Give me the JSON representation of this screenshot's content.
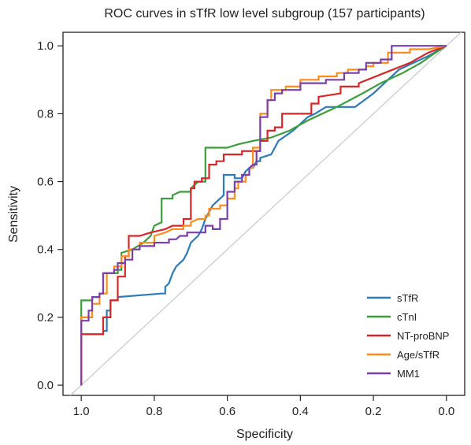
{
  "chart_data": {
    "type": "line",
    "title": "ROC curves in sTfR low level subgroup (157 participants)",
    "xlabel": "Specificity",
    "ylabel": "Sensitivity",
    "xlim": [
      1.05,
      -0.05
    ],
    "ylim": [
      -0.03,
      1.04
    ],
    "x_reversed": true,
    "xticks": [
      1.0,
      0.8,
      0.6,
      0.4,
      0.2,
      0.0
    ],
    "xtick_labels": [
      "1.0",
      "0.8",
      "0.6",
      "0.4",
      "0.2",
      "0.0"
    ],
    "yticks": [
      0.0,
      0.2,
      0.4,
      0.6,
      0.8,
      1.0
    ],
    "ytick_labels": [
      "0.0",
      "0.2",
      "0.4",
      "0.6",
      "0.8",
      "1.0"
    ],
    "grid": false,
    "legend": "bottom-right",
    "reference_line": {
      "from": [
        1.0,
        0.0
      ],
      "to": [
        0.0,
        1.0
      ],
      "color": "#c8c8d2"
    },
    "series": [
      {
        "name": "sTfR",
        "color": "#2b7bba",
        "points": [
          [
            1.0,
            0.0
          ],
          [
            1.0,
            0.15
          ],
          [
            0.94,
            0.15
          ],
          [
            0.94,
            0.16
          ],
          [
            0.93,
            0.16
          ],
          [
            0.93,
            0.22
          ],
          [
            0.92,
            0.22
          ],
          [
            0.92,
            0.25
          ],
          [
            0.9,
            0.25
          ],
          [
            0.9,
            0.26
          ],
          [
            0.78,
            0.27
          ],
          [
            0.77,
            0.27
          ],
          [
            0.77,
            0.29
          ],
          [
            0.76,
            0.3
          ],
          [
            0.75,
            0.33
          ],
          [
            0.74,
            0.35
          ],
          [
            0.72,
            0.37
          ],
          [
            0.71,
            0.39
          ],
          [
            0.7,
            0.42
          ],
          [
            0.68,
            0.44
          ],
          [
            0.67,
            0.46
          ],
          [
            0.66,
            0.49
          ],
          [
            0.64,
            0.53
          ],
          [
            0.62,
            0.55
          ],
          [
            0.61,
            0.56
          ],
          [
            0.61,
            0.62
          ],
          [
            0.58,
            0.62
          ],
          [
            0.58,
            0.61
          ],
          [
            0.56,
            0.61
          ],
          [
            0.55,
            0.63
          ],
          [
            0.54,
            0.64
          ],
          [
            0.53,
            0.64
          ],
          [
            0.52,
            0.66
          ],
          [
            0.51,
            0.66
          ],
          [
            0.51,
            0.67
          ],
          [
            0.48,
            0.68
          ],
          [
            0.47,
            0.7
          ],
          [
            0.46,
            0.72
          ],
          [
            0.42,
            0.75
          ],
          [
            0.38,
            0.79
          ],
          [
            0.36,
            0.8
          ],
          [
            0.33,
            0.82
          ],
          [
            0.25,
            0.82
          ],
          [
            0.2,
            0.86
          ],
          [
            0.16,
            0.9
          ],
          [
            0.13,
            0.93
          ],
          [
            0.09,
            0.95
          ],
          [
            0.05,
            0.97
          ],
          [
            0.0,
            1.0
          ]
        ]
      },
      {
        "name": "cTnI",
        "color": "#3a9e3a",
        "points": [
          [
            1.0,
            0.0
          ],
          [
            1.0,
            0.25
          ],
          [
            0.97,
            0.25
          ],
          [
            0.97,
            0.26
          ],
          [
            0.95,
            0.26
          ],
          [
            0.95,
            0.27
          ],
          [
            0.94,
            0.27
          ],
          [
            0.94,
            0.33
          ],
          [
            0.9,
            0.33
          ],
          [
            0.9,
            0.34
          ],
          [
            0.89,
            0.34
          ],
          [
            0.89,
            0.39
          ],
          [
            0.86,
            0.4
          ],
          [
            0.83,
            0.42
          ],
          [
            0.81,
            0.44
          ],
          [
            0.8,
            0.47
          ],
          [
            0.78,
            0.48
          ],
          [
            0.78,
            0.55
          ],
          [
            0.75,
            0.55
          ],
          [
            0.75,
            0.56
          ],
          [
            0.73,
            0.57
          ],
          [
            0.7,
            0.57
          ],
          [
            0.7,
            0.58
          ],
          [
            0.69,
            0.59
          ],
          [
            0.68,
            0.6
          ],
          [
            0.66,
            0.6
          ],
          [
            0.66,
            0.7
          ],
          [
            0.62,
            0.7
          ],
          [
            0.6,
            0.7
          ],
          [
            0.57,
            0.71
          ],
          [
            0.53,
            0.72
          ],
          [
            0.48,
            0.73
          ],
          [
            0.43,
            0.75
          ],
          [
            0.38,
            0.78
          ],
          [
            0.3,
            0.82
          ],
          [
            0.23,
            0.86
          ],
          [
            0.18,
            0.89
          ],
          [
            0.12,
            0.92
          ],
          [
            0.07,
            0.95
          ],
          [
            0.03,
            0.98
          ],
          [
            0.0,
            1.0
          ]
        ]
      },
      {
        "name": "NT-proBNP",
        "color": "#d62728",
        "points": [
          [
            1.0,
            0.0
          ],
          [
            1.0,
            0.15
          ],
          [
            0.94,
            0.15
          ],
          [
            0.94,
            0.2
          ],
          [
            0.92,
            0.2
          ],
          [
            0.92,
            0.25
          ],
          [
            0.9,
            0.25
          ],
          [
            0.9,
            0.32
          ],
          [
            0.88,
            0.32
          ],
          [
            0.88,
            0.38
          ],
          [
            0.87,
            0.38
          ],
          [
            0.87,
            0.44
          ],
          [
            0.84,
            0.44
          ],
          [
            0.81,
            0.45
          ],
          [
            0.77,
            0.46
          ],
          [
            0.75,
            0.47
          ],
          [
            0.72,
            0.47
          ],
          [
            0.72,
            0.49
          ],
          [
            0.7,
            0.49
          ],
          [
            0.7,
            0.58
          ],
          [
            0.69,
            0.58
          ],
          [
            0.69,
            0.6
          ],
          [
            0.67,
            0.6
          ],
          [
            0.67,
            0.61
          ],
          [
            0.65,
            0.61
          ],
          [
            0.65,
            0.65
          ],
          [
            0.63,
            0.65
          ],
          [
            0.63,
            0.66
          ],
          [
            0.62,
            0.66
          ],
          [
            0.61,
            0.66
          ],
          [
            0.61,
            0.68
          ],
          [
            0.56,
            0.68
          ],
          [
            0.56,
            0.69
          ],
          [
            0.51,
            0.69
          ],
          [
            0.51,
            0.72
          ],
          [
            0.49,
            0.72
          ],
          [
            0.49,
            0.75
          ],
          [
            0.47,
            0.75
          ],
          [
            0.47,
            0.76
          ],
          [
            0.45,
            0.76
          ],
          [
            0.45,
            0.8
          ],
          [
            0.37,
            0.8
          ],
          [
            0.37,
            0.83
          ],
          [
            0.35,
            0.83
          ],
          [
            0.35,
            0.85
          ],
          [
            0.29,
            0.86
          ],
          [
            0.29,
            0.88
          ],
          [
            0.24,
            0.88
          ],
          [
            0.24,
            0.89
          ],
          [
            0.17,
            0.92
          ],
          [
            0.1,
            0.95
          ],
          [
            0.05,
            0.98
          ],
          [
            0.0,
            1.0
          ]
        ]
      },
      {
        "name": "Age/sTfR",
        "color": "#ff8c1a",
        "points": [
          [
            1.0,
            0.0
          ],
          [
            1.0,
            0.2
          ],
          [
            0.97,
            0.2
          ],
          [
            0.97,
            0.24
          ],
          [
            0.95,
            0.24
          ],
          [
            0.95,
            0.27
          ],
          [
            0.93,
            0.27
          ],
          [
            0.93,
            0.33
          ],
          [
            0.91,
            0.33
          ],
          [
            0.91,
            0.35
          ],
          [
            0.89,
            0.35
          ],
          [
            0.89,
            0.38
          ],
          [
            0.87,
            0.38
          ],
          [
            0.87,
            0.4
          ],
          [
            0.84,
            0.4
          ],
          [
            0.84,
            0.42
          ],
          [
            0.8,
            0.42
          ],
          [
            0.8,
            0.44
          ],
          [
            0.77,
            0.45
          ],
          [
            0.75,
            0.46
          ],
          [
            0.72,
            0.46
          ],
          [
            0.72,
            0.47
          ],
          [
            0.7,
            0.47
          ],
          [
            0.7,
            0.48
          ],
          [
            0.68,
            0.49
          ],
          [
            0.66,
            0.49
          ],
          [
            0.66,
            0.5
          ],
          [
            0.65,
            0.5
          ],
          [
            0.65,
            0.52
          ],
          [
            0.62,
            0.52
          ],
          [
            0.62,
            0.53
          ],
          [
            0.6,
            0.53
          ],
          [
            0.6,
            0.55
          ],
          [
            0.58,
            0.55
          ],
          [
            0.58,
            0.58
          ],
          [
            0.57,
            0.58
          ],
          [
            0.57,
            0.6
          ],
          [
            0.55,
            0.6
          ],
          [
            0.55,
            0.62
          ],
          [
            0.54,
            0.62
          ],
          [
            0.54,
            0.64
          ],
          [
            0.53,
            0.64
          ],
          [
            0.53,
            0.7
          ],
          [
            0.51,
            0.7
          ],
          [
            0.51,
            0.8
          ],
          [
            0.49,
            0.8
          ],
          [
            0.49,
            0.84
          ],
          [
            0.48,
            0.84
          ],
          [
            0.48,
            0.87
          ],
          [
            0.44,
            0.87
          ],
          [
            0.44,
            0.88
          ],
          [
            0.4,
            0.88
          ],
          [
            0.4,
            0.9
          ],
          [
            0.35,
            0.9
          ],
          [
            0.35,
            0.91
          ],
          [
            0.3,
            0.91
          ],
          [
            0.3,
            0.92
          ],
          [
            0.27,
            0.92
          ],
          [
            0.27,
            0.93
          ],
          [
            0.22,
            0.93
          ],
          [
            0.22,
            0.94
          ],
          [
            0.2,
            0.94
          ],
          [
            0.2,
            0.95
          ],
          [
            0.16,
            0.95
          ],
          [
            0.16,
            0.98
          ],
          [
            0.1,
            0.98
          ],
          [
            0.1,
            0.99
          ],
          [
            0.05,
            0.99
          ],
          [
            0.0,
            1.0
          ]
        ]
      },
      {
        "name": "MM1",
        "color": "#7b3fa8",
        "points": [
          [
            1.0,
            0.0
          ],
          [
            1.0,
            0.19
          ],
          [
            0.98,
            0.19
          ],
          [
            0.98,
            0.22
          ],
          [
            0.97,
            0.22
          ],
          [
            0.97,
            0.26
          ],
          [
            0.95,
            0.26
          ],
          [
            0.95,
            0.27
          ],
          [
            0.94,
            0.27
          ],
          [
            0.94,
            0.33
          ],
          [
            0.91,
            0.33
          ],
          [
            0.91,
            0.34
          ],
          [
            0.9,
            0.34
          ],
          [
            0.9,
            0.36
          ],
          [
            0.88,
            0.36
          ],
          [
            0.88,
            0.37
          ],
          [
            0.86,
            0.37
          ],
          [
            0.86,
            0.4
          ],
          [
            0.84,
            0.4
          ],
          [
            0.84,
            0.41
          ],
          [
            0.8,
            0.41
          ],
          [
            0.8,
            0.42
          ],
          [
            0.76,
            0.42
          ],
          [
            0.76,
            0.43
          ],
          [
            0.74,
            0.43
          ],
          [
            0.73,
            0.44
          ],
          [
            0.71,
            0.44
          ],
          [
            0.71,
            0.45
          ],
          [
            0.66,
            0.45
          ],
          [
            0.66,
            0.47
          ],
          [
            0.64,
            0.47
          ],
          [
            0.64,
            0.46
          ],
          [
            0.62,
            0.46
          ],
          [
            0.62,
            0.49
          ],
          [
            0.6,
            0.49
          ],
          [
            0.6,
            0.57
          ],
          [
            0.58,
            0.57
          ],
          [
            0.58,
            0.6
          ],
          [
            0.56,
            0.6
          ],
          [
            0.56,
            0.62
          ],
          [
            0.54,
            0.62
          ],
          [
            0.54,
            0.64
          ],
          [
            0.53,
            0.65
          ],
          [
            0.52,
            0.65
          ],
          [
            0.52,
            0.69
          ],
          [
            0.51,
            0.69
          ],
          [
            0.51,
            0.79
          ],
          [
            0.49,
            0.79
          ],
          [
            0.49,
            0.84
          ],
          [
            0.47,
            0.84
          ],
          [
            0.47,
            0.86
          ],
          [
            0.45,
            0.86
          ],
          [
            0.45,
            0.87
          ],
          [
            0.4,
            0.87
          ],
          [
            0.4,
            0.89
          ],
          [
            0.33,
            0.89
          ],
          [
            0.33,
            0.9
          ],
          [
            0.28,
            0.9
          ],
          [
            0.28,
            0.92
          ],
          [
            0.24,
            0.92
          ],
          [
            0.24,
            0.93
          ],
          [
            0.22,
            0.93
          ],
          [
            0.22,
            0.95
          ],
          [
            0.18,
            0.95
          ],
          [
            0.18,
            0.96
          ],
          [
            0.15,
            0.96
          ],
          [
            0.15,
            1.0
          ],
          [
            0.0,
            1.0
          ]
        ]
      }
    ]
  }
}
